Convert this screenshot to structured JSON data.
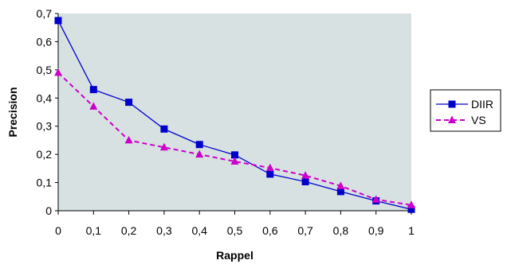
{
  "chart_data": {
    "type": "line",
    "xlabel": "Rappel",
    "ylabel": "Precision",
    "xlim": [
      0,
      1
    ],
    "ylim": [
      0,
      0.7
    ],
    "x_ticks": [
      "0",
      "0,1",
      "0,2",
      "0,3",
      "0,4",
      "0,5",
      "0,6",
      "0,7",
      "0,8",
      "0,9",
      "1"
    ],
    "y_ticks": [
      "0",
      "0,1",
      "0,2",
      "0,3",
      "0,4",
      "0,5",
      "0,6",
      "0,7"
    ],
    "x": [
      0,
      0.1,
      0.2,
      0.3,
      0.4,
      0.5,
      0.6,
      0.7,
      0.8,
      0.9,
      1
    ],
    "series": [
      {
        "name": "DIIR",
        "color": "#0000cc",
        "marker": "square",
        "line_style": "solid",
        "values": [
          0.675,
          0.43,
          0.385,
          0.29,
          0.235,
          0.198,
          0.13,
          0.103,
          0.068,
          0.035,
          0.005
        ]
      },
      {
        "name": "VS",
        "color": "#cc00cc",
        "marker": "triangle",
        "line_style": "dashed",
        "values": [
          0.49,
          0.37,
          0.25,
          0.225,
          0.2,
          0.175,
          0.152,
          0.125,
          0.088,
          0.04,
          0.02
        ]
      }
    ],
    "plot_background": "#d7e1e1",
    "grid": false,
    "legend_position": "right"
  }
}
